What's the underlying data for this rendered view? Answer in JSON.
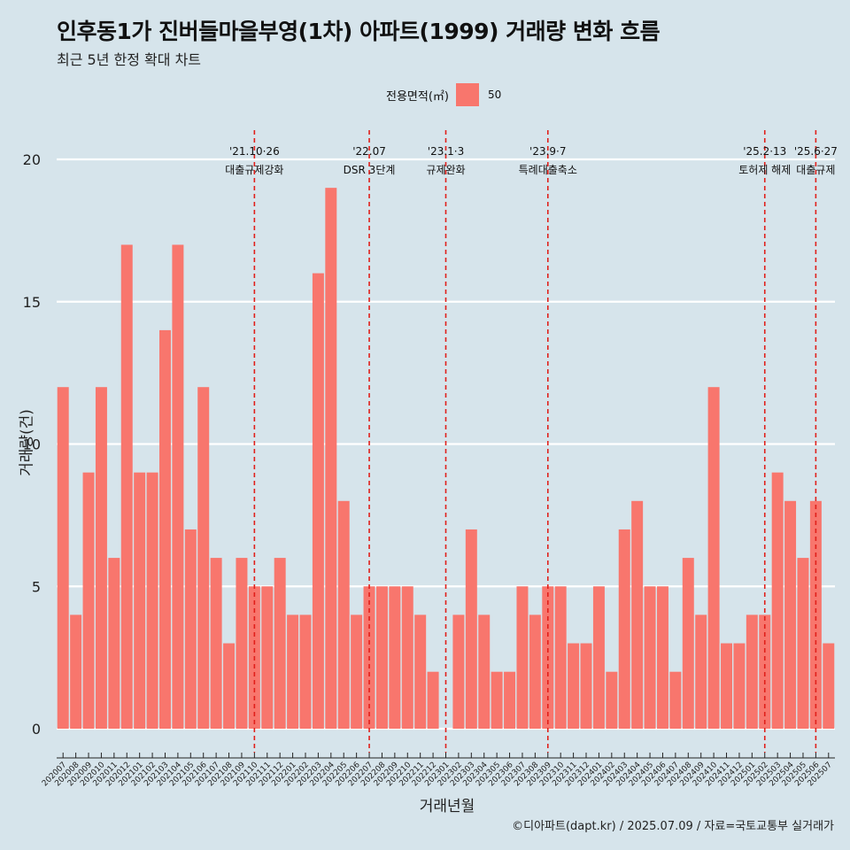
{
  "title": "인후동1가 진버들마을부영(1차) 아파트(1999) 거래량 변화 흐름",
  "subtitle": "최근 5년 한정 확대 차트",
  "legend": {
    "title": "전용면적(㎡)",
    "label": "50"
  },
  "caption": "©디아파트(dapt.kr) / 2025.07.09 / 자료=국토교통부 실거래가",
  "colors": {
    "bar": "#f8766d",
    "background": "#d6e4eb",
    "grid": "#ffffff",
    "event_line": "#e0201b"
  },
  "chart_data": {
    "type": "bar",
    "xlabel": "거래년월",
    "ylabel": "거래량(건)",
    "ylim": [
      0,
      20
    ],
    "yticks": [
      0,
      5,
      10,
      15,
      20
    ],
    "grid": true,
    "legend_position": "top",
    "categories": [
      "202007",
      "202008",
      "202009",
      "202010",
      "202011",
      "202012",
      "202101",
      "202102",
      "202103",
      "202104",
      "202105",
      "202106",
      "202107",
      "202108",
      "202109",
      "202110",
      "202111",
      "202112",
      "202201",
      "202202",
      "202203",
      "202204",
      "202205",
      "202206",
      "202207",
      "202208",
      "202209",
      "202210",
      "202211",
      "202212",
      "202301",
      "202302",
      "202303",
      "202304",
      "202305",
      "202306",
      "202307",
      "202308",
      "202309",
      "202310",
      "202311",
      "202312",
      "202401",
      "202402",
      "202403",
      "202404",
      "202405",
      "202406",
      "202407",
      "202408",
      "202409",
      "202410",
      "202411",
      "202412",
      "202501",
      "202502",
      "202503",
      "202504",
      "202505",
      "202506",
      "202507"
    ],
    "series": [
      {
        "name": "50",
        "values": [
          12,
          4,
          9,
          12,
          6,
          17,
          9,
          9,
          14,
          17,
          7,
          12,
          6,
          3,
          6,
          5,
          5,
          6,
          4,
          4,
          16,
          19,
          8,
          4,
          5,
          5,
          5,
          5,
          4,
          2,
          0,
          4,
          7,
          4,
          2,
          2,
          5,
          4,
          5,
          5,
          3,
          3,
          5,
          2,
          7,
          8,
          5,
          5,
          2,
          6,
          4,
          12,
          3,
          3,
          4,
          4,
          9,
          8,
          6,
          8,
          3
        ]
      }
    ],
    "events": [
      {
        "category": "202110",
        "date": "'21.10·26",
        "label": "대출규제강화"
      },
      {
        "category": "202207",
        "date": "'22.07",
        "label": "DSR 3단계"
      },
      {
        "category": "202301",
        "date": "'23.1·3",
        "label": "규제완화"
      },
      {
        "category": "202309",
        "date": "'23.9·7",
        "label": "특례대출축소"
      },
      {
        "category": "202502",
        "date": "'25.2·13",
        "label": "토허제 해제"
      },
      {
        "category": "202506",
        "date": "'25.6·27",
        "label": "대출규제"
      }
    ]
  }
}
